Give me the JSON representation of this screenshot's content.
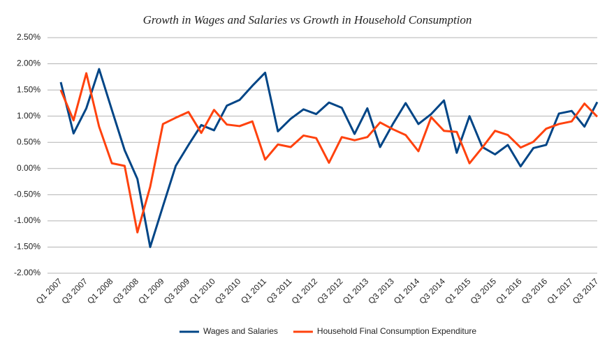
{
  "chart_data": {
    "type": "line",
    "title": "Growth in Wages and Salaries vs Growth in Household Consumption",
    "categories": [
      "Q1 2007",
      null,
      "Q3 2007",
      null,
      "Q1 2008",
      null,
      "Q3 2008",
      null,
      "Q1 2009",
      null,
      "Q3 2009",
      null,
      "Q1 2010",
      null,
      "Q3 2010",
      null,
      "Q1 2011",
      null,
      "Q3 2011",
      null,
      "Q1 2012",
      null,
      "Q3 2012",
      null,
      "Q1 2013",
      null,
      "Q3 2013",
      null,
      "Q1 2014",
      null,
      "Q3 2014",
      null,
      "Q1 2015",
      null,
      "Q3 2015",
      null,
      "Q1 2016",
      null,
      "Q3 2016",
      null,
      "Q1 2017",
      null,
      "Q3 2017"
    ],
    "series": [
      {
        "name": "Wages and Salaries",
        "color": "#004586",
        "values": [
          1.65,
          0.67,
          1.15,
          1.9,
          1.12,
          0.35,
          -0.2,
          -1.5,
          -0.72,
          0.05,
          0.45,
          0.83,
          0.73,
          1.2,
          1.31,
          1.58,
          1.83,
          0.71,
          0.95,
          1.13,
          1.04,
          1.26,
          1.16,
          0.66,
          1.15,
          0.41,
          0.85,
          1.25,
          0.85,
          1.04,
          1.3,
          0.3,
          1.0,
          0.41,
          0.27,
          0.45,
          0.04,
          0.39,
          0.45,
          1.05,
          1.1,
          0.8,
          1.27
        ]
      },
      {
        "name": "Household Final Consumption Expenditure",
        "color": "#ff420e",
        "values": [
          1.5,
          0.92,
          1.82,
          0.8,
          0.1,
          0.05,
          -1.22,
          -0.35,
          0.85,
          0.97,
          1.08,
          0.68,
          1.12,
          0.84,
          0.81,
          0.9,
          0.17,
          0.46,
          0.41,
          0.63,
          0.58,
          0.11,
          0.6,
          0.54,
          0.6,
          0.88,
          0.75,
          0.64,
          0.33,
          0.98,
          0.72,
          0.7,
          0.1,
          0.4,
          0.72,
          0.64,
          0.4,
          0.51,
          0.76,
          0.85,
          0.9,
          1.24,
          0.99
        ]
      }
    ],
    "ylim": [
      -2,
      2.5
    ],
    "yticks": [
      {
        "value": -2,
        "label": "-2.00%"
      },
      {
        "value": -1.5,
        "label": "-1.50%"
      },
      {
        "value": -1,
        "label": "-1.00%"
      },
      {
        "value": -0.5,
        "label": "-0.50%"
      },
      {
        "value": 0,
        "label": "0.00%"
      },
      {
        "value": 0.5,
        "label": "0.50%"
      },
      {
        "value": 1,
        "label": "1.00%"
      },
      {
        "value": 1.5,
        "label": "1.50%"
      },
      {
        "value": 2,
        "label": "2.00%"
      },
      {
        "value": 2.5,
        "label": "2.50%"
      }
    ],
    "grid": true,
    "legend": "bottom"
  }
}
